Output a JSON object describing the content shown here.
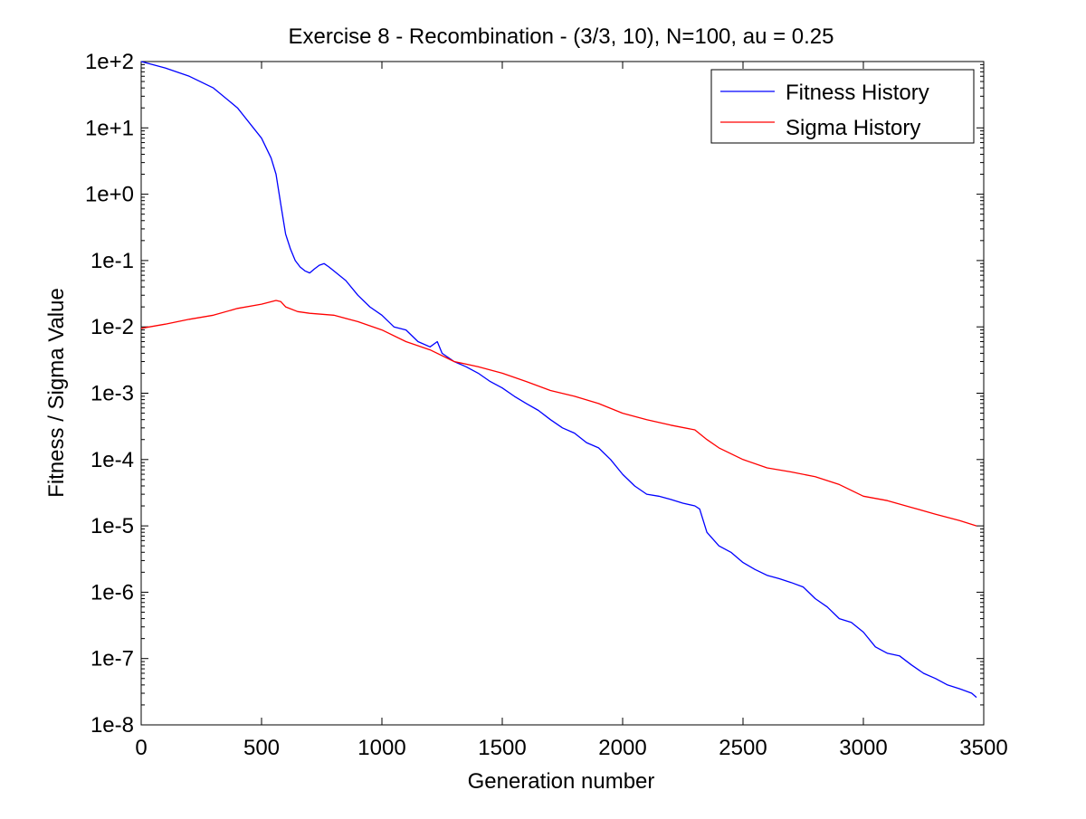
{
  "chart_data": {
    "type": "line",
    "title": "Exercise 8 - Recombination - (3/3, 10), N=100,  au = 0.25",
    "xlabel": "Generation number",
    "ylabel": "Fitness / Sigma Value",
    "xlim": [
      0,
      3500
    ],
    "ylim": [
      1e-08,
      100
    ],
    "yscale": "log",
    "xticks": [
      0,
      500,
      1000,
      1500,
      2000,
      2500,
      3000,
      3500
    ],
    "xtick_labels": [
      "0",
      "500",
      "1000",
      "1500",
      "2000",
      "2500",
      "3000",
      "3500"
    ],
    "yticks": [
      1e-08,
      1e-07,
      1e-06,
      1e-05,
      0.0001,
      0.001,
      0.01,
      0.1,
      1,
      10,
      100
    ],
    "ytick_labels": [
      "1e-8",
      "1e-7",
      "1e-6",
      "1e-5",
      "1e-4",
      "1e-3",
      "1e-2",
      "1e-1",
      "1e+0",
      "1e+1",
      "1e+2"
    ],
    "grid": false,
    "legend_position": "top-right",
    "series": [
      {
        "name": "Fitness History",
        "color": "#0000ff",
        "x": [
          0,
          100,
          200,
          300,
          400,
          500,
          540,
          560,
          580,
          600,
          620,
          640,
          660,
          680,
          700,
          720,
          740,
          760,
          780,
          800,
          850,
          900,
          950,
          1000,
          1050,
          1100,
          1150,
          1200,
          1230,
          1250,
          1300,
          1350,
          1400,
          1450,
          1500,
          1550,
          1600,
          1650,
          1700,
          1750,
          1800,
          1850,
          1900,
          1950,
          2000,
          2050,
          2100,
          2150,
          2200,
          2250,
          2300,
          2320,
          2350,
          2400,
          2450,
          2500,
          2550,
          2600,
          2650,
          2700,
          2750,
          2800,
          2850,
          2900,
          2950,
          3000,
          3050,
          3100,
          3150,
          3200,
          3250,
          3300,
          3350,
          3400,
          3450,
          3470
        ],
        "values": [
          100,
          80,
          60,
          40,
          20,
          7,
          3.5,
          2,
          0.7,
          0.25,
          0.15,
          0.1,
          0.08,
          0.07,
          0.065,
          0.075,
          0.085,
          0.09,
          0.08,
          0.07,
          0.05,
          0.03,
          0.02,
          0.015,
          0.01,
          0.009,
          0.006,
          0.005,
          0.006,
          0.004,
          0.003,
          0.0025,
          0.002,
          0.0015,
          0.0012,
          0.0009,
          0.0007,
          0.00055,
          0.0004,
          0.0003,
          0.00025,
          0.00018,
          0.00015,
          0.0001,
          6e-05,
          4e-05,
          3e-05,
          2.8e-05,
          2.5e-05,
          2.2e-05,
          2e-05,
          1.8e-05,
          8e-06,
          5e-06,
          4e-06,
          2.8e-06,
          2.2e-06,
          1.8e-06,
          1.6e-06,
          1.4e-06,
          1.2e-06,
          8e-07,
          6e-07,
          4e-07,
          3.5e-07,
          2.5e-07,
          1.5e-07,
          1.2e-07,
          1.1e-07,
          8e-08,
          6e-08,
          5e-08,
          4e-08,
          3.5e-08,
          3e-08,
          2.6e-08
        ]
      },
      {
        "name": "Sigma History",
        "color": "#ff0000",
        "x": [
          0,
          100,
          200,
          300,
          400,
          500,
          560,
          580,
          600,
          650,
          700,
          800,
          900,
          1000,
          1100,
          1200,
          1300,
          1400,
          1500,
          1600,
          1700,
          1800,
          1900,
          2000,
          2100,
          2200,
          2300,
          2350,
          2400,
          2500,
          2600,
          2700,
          2800,
          2900,
          3000,
          3100,
          3200,
          3300,
          3400,
          3470
        ],
        "values": [
          0.0095,
          0.011,
          0.013,
          0.015,
          0.019,
          0.022,
          0.025,
          0.024,
          0.02,
          0.017,
          0.016,
          0.015,
          0.012,
          0.009,
          0.006,
          0.0045,
          0.003,
          0.0025,
          0.002,
          0.0015,
          0.0011,
          0.0009,
          0.0007,
          0.0005,
          0.0004,
          0.00033,
          0.00028,
          0.0002,
          0.00015,
          0.0001,
          7.5e-05,
          6.5e-05,
          5.5e-05,
          4.2e-05,
          2.8e-05,
          2.4e-05,
          1.9e-05,
          1.5e-05,
          1.2e-05,
          1e-05
        ]
      }
    ]
  }
}
